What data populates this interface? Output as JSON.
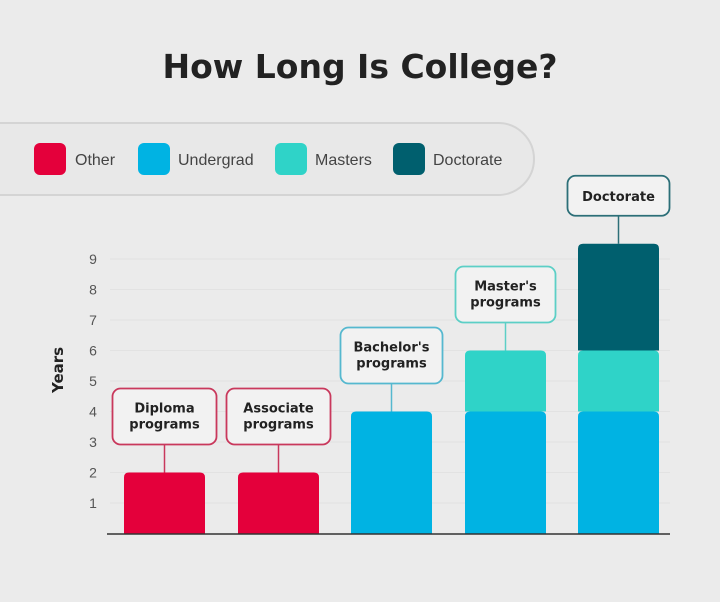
{
  "chart_data": {
    "type": "bar",
    "stacked": true,
    "title": "How Long Is College?",
    "xlabel": "",
    "ylabel": "Years",
    "ylim": [
      0,
      9.5
    ],
    "yticks": [
      1,
      2,
      3,
      4,
      5,
      6,
      7,
      8,
      9
    ],
    "grid": true,
    "legend_position": "top-left",
    "categories": [
      "Diploma programs",
      "Associate programs",
      "Bachelor's programs",
      "Master's programs",
      "Doctorate"
    ],
    "series": [
      {
        "name": "Other",
        "color": "#e4003b",
        "values": [
          2,
          2,
          0,
          0,
          0
        ]
      },
      {
        "name": "Undergrad",
        "color": "#00b3e3",
        "values": [
          0,
          0,
          4,
          4,
          4
        ]
      },
      {
        "name": "Masters",
        "color": "#2fd3c8",
        "values": [
          0,
          0,
          0,
          2,
          2
        ]
      },
      {
        "name": "Doctorate",
        "color": "#005f6e",
        "values": [
          0,
          0,
          0,
          0,
          3.5
        ]
      }
    ],
    "callout_colors": [
      "#c9385c",
      "#c9385c",
      "#55b8cf",
      "#5ccfc6",
      "#2c6f78"
    ]
  }
}
